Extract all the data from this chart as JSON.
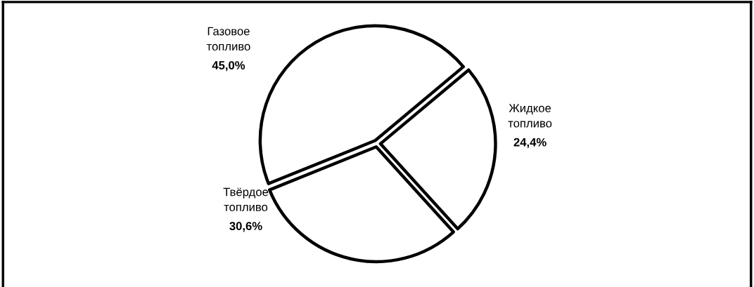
{
  "chart_data": {
    "type": "pie",
    "categories": [
      "Газовое\nтопливо",
      "Жидкое\nтопливо",
      "Твёрдое\nтопливо"
    ],
    "values": [
      45.0,
      24.4,
      30.6
    ],
    "value_labels": [
      "45,0%",
      "24,4%",
      "30,6%"
    ],
    "colors": [
      "#ffffff",
      "#ffffff",
      "#ffffff"
    ]
  }
}
